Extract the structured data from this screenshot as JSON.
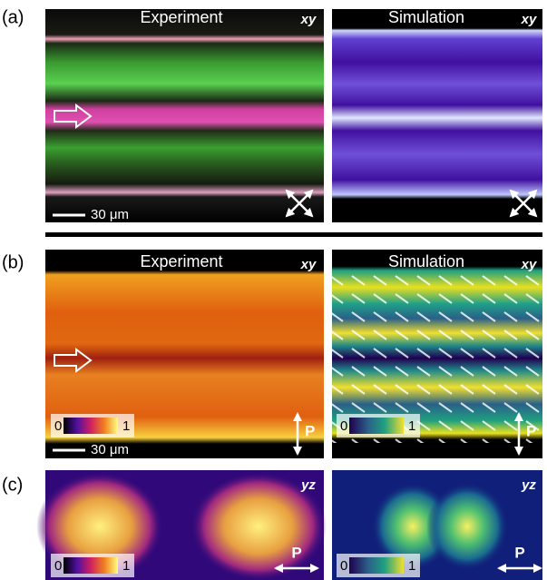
{
  "panels": [
    {
      "label": "(a)",
      "images": [
        {
          "title": "Experiment",
          "plane": "xy",
          "scale_bar": "30 μm"
        },
        {
          "title": "Simulation",
          "plane": "xy"
        }
      ]
    },
    {
      "label": "(b)",
      "images": [
        {
          "title": "Experiment",
          "plane": "xy",
          "scale_bar": "30 μm",
          "colorbar": [
            "0",
            "1"
          ],
          "polarizer": "P"
        },
        {
          "title": "Simulation",
          "plane": "xy",
          "colorbar": [
            "0",
            "1"
          ],
          "polarizer": "P"
        }
      ]
    },
    {
      "label": "(c)",
      "images": [
        {
          "plane": "yz",
          "colorbar": [
            "0",
            "1"
          ],
          "polarizer": "P"
        },
        {
          "plane": "yz",
          "colorbar": [
            "0",
            "1"
          ],
          "polarizer": "P"
        }
      ]
    }
  ]
}
